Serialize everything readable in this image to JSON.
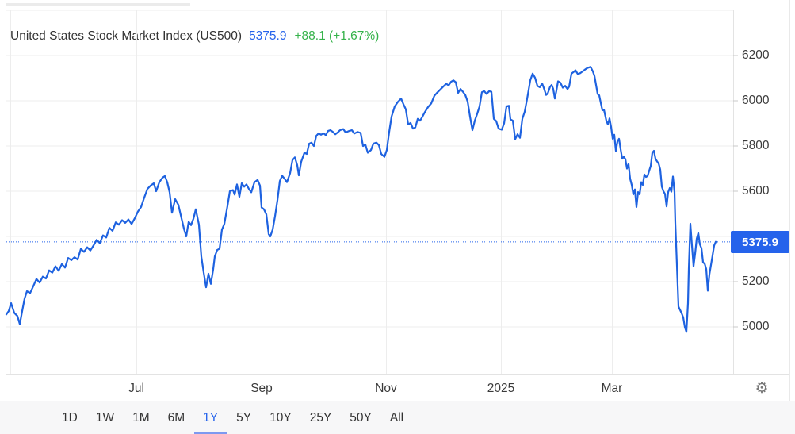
{
  "header": {
    "title": "United States Stock Market Index (US500)",
    "price": "5375.9",
    "change": "+88.1 (+1.67%)"
  },
  "price_badge": {
    "value": "5375.9"
  },
  "icons": {
    "gear": "⚙"
  },
  "toolbar": {
    "ranges": [
      "1D",
      "1W",
      "1M",
      "6M",
      "1Y",
      "5Y",
      "10Y",
      "25Y",
      "50Y",
      "All"
    ],
    "active": "1Y"
  },
  "colors": {
    "line": "#1e62e0",
    "accent_blue": "#2563eb",
    "green": "#35b24a",
    "grid": "#ededed",
    "axis": "#e3e3e3",
    "tick": "#c9c9c9",
    "text_dark": "#333333",
    "axis_text": "#3b3b3b",
    "active_underline": "#7d99f0"
  },
  "chart_data": {
    "type": "line",
    "title": "United States Stock Market Index (US500)",
    "last_value": 5375.9,
    "change_abs": 88.1,
    "change_pct": 1.67,
    "current_value_line": 5375.9,
    "y_axis": {
      "ticks": [
        6200,
        6000,
        5800,
        5600,
        5400,
        5200,
        5000
      ],
      "gridline_values": [
        6400,
        6200,
        6000,
        5800,
        5600,
        5400,
        5200,
        5000
      ],
      "visible_range": [
        4790,
        6445
      ]
    },
    "x_axis": {
      "note": "x positions are pixels inside plot area (plot spans 8..925), 1Y of trading days Apr 2024 - Apr 2025",
      "ticks": [
        {
          "label": "Jul",
          "x": 172
        },
        {
          "label": "Sep",
          "x": 330
        },
        {
          "label": "Nov",
          "x": 487
        },
        {
          "label": "2025",
          "x": 632
        },
        {
          "label": "Mar",
          "x": 772
        }
      ],
      "extra_gridlines_x": [
        13
      ]
    },
    "series": [
      {
        "name": "US500",
        "points": [
          [
            8,
            5055
          ],
          [
            11,
            5070
          ],
          [
            14,
            5105
          ],
          [
            18,
            5062
          ],
          [
            22,
            5048
          ],
          [
            25,
            5012
          ],
          [
            28,
            5070
          ],
          [
            31,
            5125
          ],
          [
            34,
            5158
          ],
          [
            38,
            5150
          ],
          [
            42,
            5180
          ],
          [
            46,
            5212
          ],
          [
            50,
            5196
          ],
          [
            54,
            5222
          ],
          [
            58,
            5214
          ],
          [
            62,
            5250
          ],
          [
            66,
            5240
          ],
          [
            70,
            5268
          ],
          [
            74,
            5248
          ],
          [
            78,
            5278
          ],
          [
            82,
            5262
          ],
          [
            86,
            5305
          ],
          [
            90,
            5295
          ],
          [
            94,
            5308
          ],
          [
            98,
            5298
          ],
          [
            102,
            5345
          ],
          [
            106,
            5332
          ],
          [
            110,
            5352
          ],
          [
            114,
            5338
          ],
          [
            118,
            5360
          ],
          [
            122,
            5385
          ],
          [
            126,
            5370
          ],
          [
            130,
            5405
          ],
          [
            134,
            5395
          ],
          [
            138,
            5438
          ],
          [
            142,
            5425
          ],
          [
            146,
            5462
          ],
          [
            150,
            5452
          ],
          [
            154,
            5472
          ],
          [
            158,
            5460
          ],
          [
            162,
            5475
          ],
          [
            166,
            5455
          ],
          [
            170,
            5480
          ],
          [
            174,
            5510
          ],
          [
            178,
            5530
          ],
          [
            182,
            5572
          ],
          [
            186,
            5610
          ],
          [
            190,
            5625
          ],
          [
            194,
            5635
          ],
          [
            197,
            5600
          ],
          [
            201,
            5640
          ],
          [
            205,
            5660
          ],
          [
            208,
            5667
          ],
          [
            211,
            5640
          ],
          [
            214,
            5595
          ],
          [
            217,
            5505
          ],
          [
            221,
            5565
          ],
          [
            225,
            5540
          ],
          [
            229,
            5480
          ],
          [
            232,
            5435
          ],
          [
            235,
            5400
          ],
          [
            238,
            5465
          ],
          [
            241,
            5450
          ],
          [
            244,
            5478
          ],
          [
            247,
            5520
          ],
          [
            251,
            5452
          ],
          [
            254,
            5310
          ],
          [
            257,
            5240
          ],
          [
            260,
            5175
          ],
          [
            263,
            5235
          ],
          [
            266,
            5190
          ],
          [
            269,
            5255
          ],
          [
            271,
            5312
          ],
          [
            274,
            5340
          ],
          [
            277,
            5346
          ],
          [
            280,
            5430
          ],
          [
            283,
            5455
          ],
          [
            287,
            5535
          ],
          [
            290,
            5600
          ],
          [
            294,
            5605
          ],
          [
            296,
            5585
          ],
          [
            299,
            5630
          ],
          [
            302,
            5575
          ],
          [
            305,
            5635
          ],
          [
            308,
            5620
          ],
          [
            311,
            5630
          ],
          [
            314,
            5610
          ],
          [
            317,
            5595
          ],
          [
            321,
            5640
          ],
          [
            325,
            5650
          ],
          [
            328,
            5625
          ],
          [
            330,
            5528
          ],
          [
            333,
            5520
          ],
          [
            336,
            5498
          ],
          [
            339,
            5410
          ],
          [
            341,
            5400
          ],
          [
            344,
            5430
          ],
          [
            347,
            5490
          ],
          [
            350,
            5560
          ],
          [
            353,
            5645
          ],
          [
            356,
            5668
          ],
          [
            359,
            5655
          ],
          [
            362,
            5640
          ],
          [
            366,
            5680
          ],
          [
            369,
            5738
          ],
          [
            372,
            5750
          ],
          [
            375,
            5715
          ],
          [
            377,
            5670
          ],
          [
            380,
            5730
          ],
          [
            384,
            5770
          ],
          [
            387,
            5765
          ],
          [
            390,
            5810
          ],
          [
            393,
            5815
          ],
          [
            396,
            5800
          ],
          [
            399,
            5845
          ],
          [
            402,
            5856
          ],
          [
            405,
            5850
          ],
          [
            408,
            5856
          ],
          [
            411,
            5848
          ],
          [
            414,
            5867
          ],
          [
            417,
            5870
          ],
          [
            420,
            5862
          ],
          [
            423,
            5852
          ],
          [
            426,
            5860
          ],
          [
            429,
            5870
          ],
          [
            433,
            5875
          ],
          [
            436,
            5860
          ],
          [
            440,
            5866
          ],
          [
            444,
            5870
          ],
          [
            447,
            5855
          ],
          [
            451,
            5862
          ],
          [
            455,
            5858
          ],
          [
            458,
            5800
          ],
          [
            461,
            5806
          ],
          [
            464,
            5770
          ],
          [
            468,
            5782
          ],
          [
            471,
            5810
          ],
          [
            475,
            5815
          ],
          [
            478,
            5804
          ],
          [
            481,
            5765
          ],
          [
            485,
            5752
          ],
          [
            488,
            5782
          ],
          [
            491,
            5862
          ],
          [
            494,
            5930
          ],
          [
            498,
            5975
          ],
          [
            502,
            5995
          ],
          [
            506,
            6010
          ],
          [
            509,
            5985
          ],
          [
            512,
            5962
          ],
          [
            515,
            5895
          ],
          [
            518,
            5902
          ],
          [
            521,
            5877
          ],
          [
            524,
            5882
          ],
          [
            527,
            5920
          ],
          [
            530,
            5912
          ],
          [
            533,
            5930
          ],
          [
            536,
            5950
          ],
          [
            540,
            5972
          ],
          [
            544,
            5988
          ],
          [
            548,
            6022
          ],
          [
            551,
            6034
          ],
          [
            555,
            6048
          ],
          [
            559,
            6062
          ],
          [
            563,
            6075
          ],
          [
            566,
            6068
          ],
          [
            569,
            6084
          ],
          [
            572,
            6090
          ],
          [
            575,
            6082
          ],
          [
            578,
            6035
          ],
          [
            581,
            6052
          ],
          [
            584,
            6040
          ],
          [
            587,
            6026
          ],
          [
            590,
            5996
          ],
          [
            593,
            5930
          ],
          [
            596,
            5870
          ],
          [
            599,
            5912
          ],
          [
            602,
            5942
          ],
          [
            605,
            5975
          ],
          [
            608,
            6038
          ],
          [
            611,
            6042
          ],
          [
            614,
            6030
          ],
          [
            617,
            6042
          ],
          [
            620,
            6040
          ],
          [
            623,
            5920
          ],
          [
            626,
            5910
          ],
          [
            629,
            5877
          ],
          [
            633,
            5872
          ],
          [
            636,
            5900
          ],
          [
            639,
            5975
          ],
          [
            642,
            5978
          ],
          [
            644,
            5918
          ],
          [
            647,
            5912
          ],
          [
            650,
            5830
          ],
          [
            653,
            5852
          ],
          [
            656,
            5836
          ],
          [
            659,
            5920
          ],
          [
            662,
            5952
          ],
          [
            665,
            6008
          ],
          [
            669,
            6090
          ],
          [
            672,
            6120
          ],
          [
            675,
            6102
          ],
          [
            678,
            6066
          ],
          [
            681,
            6060
          ],
          [
            684,
            6076
          ],
          [
            686,
            6058
          ],
          [
            689,
            6026
          ],
          [
            691,
            6032
          ],
          [
            694,
            6062
          ],
          [
            696,
            6070
          ],
          [
            698,
            6052
          ],
          [
            700,
            6010
          ],
          [
            702,
            6045
          ],
          [
            704,
            6086
          ],
          [
            707,
            6080
          ],
          [
            710,
            6058
          ],
          [
            713,
            6066
          ],
          [
            716,
            6052
          ],
          [
            718,
            6062
          ],
          [
            721,
            6120
          ],
          [
            724,
            6128
          ],
          [
            726,
            6135
          ],
          [
            729,
            6118
          ],
          [
            732,
            6122
          ],
          [
            735,
            6130
          ],
          [
            738,
            6138
          ],
          [
            741,
            6145
          ],
          [
            745,
            6150
          ],
          [
            748,
            6130
          ],
          [
            750,
            6110
          ],
          [
            752,
            6070
          ],
          [
            754,
            6030
          ],
          [
            756,
            6024
          ],
          [
            758,
            5990
          ],
          [
            760,
            5958
          ],
          [
            762,
            5960
          ],
          [
            765,
            5912
          ],
          [
            767,
            5895
          ],
          [
            769,
            5922
          ],
          [
            771,
            5884
          ],
          [
            773,
            5832
          ],
          [
            775,
            5850
          ],
          [
            777,
            5778
          ],
          [
            779,
            5820
          ],
          [
            781,
            5832
          ],
          [
            783,
            5786
          ],
          [
            785,
            5744
          ],
          [
            787,
            5752
          ],
          [
            789,
            5742
          ],
          [
            791,
            5700
          ],
          [
            793,
            5720
          ],
          [
            795,
            5655
          ],
          [
            797,
            5628
          ],
          [
            799,
            5586
          ],
          [
            801,
            5608
          ],
          [
            803,
            5530
          ],
          [
            805,
            5596
          ],
          [
            807,
            5586
          ],
          [
            809,
            5640
          ],
          [
            811,
            5628
          ],
          [
            813,
            5674
          ],
          [
            815,
            5663
          ],
          [
            817,
            5667
          ],
          [
            819,
            5690
          ],
          [
            821,
            5712
          ],
          [
            823,
            5770
          ],
          [
            825,
            5779
          ],
          [
            827,
            5744
          ],
          [
            829,
            5732
          ],
          [
            831,
            5722
          ],
          [
            833,
            5696
          ],
          [
            835,
            5620
          ],
          [
            837,
            5600
          ],
          [
            839,
            5588
          ],
          [
            841,
            5533
          ],
          [
            843,
            5596
          ],
          [
            845,
            5614
          ],
          [
            847,
            5598
          ],
          [
            849,
            5665
          ],
          [
            851,
            5597
          ],
          [
            852,
            5460
          ],
          [
            854,
            5274
          ],
          [
            856,
            5090
          ],
          [
            858,
            5075
          ],
          [
            860,
            5060
          ],
          [
            862,
            5042
          ],
          [
            864,
            5000
          ],
          [
            866,
            4978
          ],
          [
            868,
            5105
          ],
          [
            869,
            5255
          ],
          [
            871,
            5456
          ],
          [
            873,
            5360
          ],
          [
            875,
            5268
          ],
          [
            877,
            5324
          ],
          [
            879,
            5390
          ],
          [
            881,
            5415
          ],
          [
            883,
            5365
          ],
          [
            885,
            5348
          ],
          [
            887,
            5285
          ],
          [
            889,
            5280
          ],
          [
            891,
            5256
          ],
          [
            893,
            5160
          ],
          [
            895,
            5232
          ],
          [
            897,
            5274
          ],
          [
            899,
            5316
          ],
          [
            901,
            5360
          ],
          [
            903,
            5376
          ]
        ]
      }
    ],
    "legend": null,
    "grid": true
  }
}
